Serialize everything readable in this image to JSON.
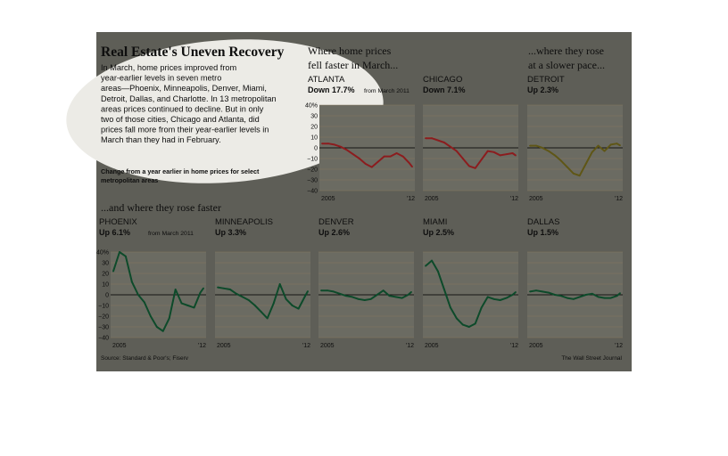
{
  "graphic": {
    "title": "Real Estate's Uneven Recovery",
    "intro": [
      "In March, home prices improved from",
      "year-earlier levels in seven metro",
      "areas—Phoenix, Minneapolis, Denver, Miami,",
      "Detroit, Dallas, and Charlotte. In 13 metropolitan",
      "areas prices continued to decline. But in only",
      "two of those cities, Chicago and Atlanta, did",
      "prices fall more from their year-earlier levels in",
      "March than they had in February."
    ],
    "caption": [
      "Change from a year earlier in home prices for select",
      "metropolitan areas"
    ],
    "headline_fell": [
      "Where home prices",
      "fell faster in March..."
    ],
    "headline_slower": [
      "...where they rose",
      "at a slower pace..."
    ],
    "headline_faster": "...and where they rose faster",
    "source": "Source: Standard & Poor's; Fiserv",
    "credit": "The Wall Street Journal",
    "from_label": "from March 2011",
    "colors": {
      "background": "#5e5e57",
      "panel": "#6b6b62",
      "gridline": "#857a5e",
      "zero_line": "#141414",
      "text": "#0e0e0e",
      "down": "#8c1c1e",
      "slower": "#5f5616",
      "faster": "#0d4a2a",
      "highlight": "#ecebe6"
    }
  },
  "chart_data": [
    {
      "type": "line",
      "metro": "ATLANTA",
      "change": "Down 17.7%",
      "group": "down",
      "x_ticks": [
        "2005",
        "'12"
      ],
      "y_ticks": [
        "40%",
        "30",
        "20",
        "10",
        "0",
        "−10",
        "−20",
        "−30",
        "−40"
      ],
      "ylim": [
        -40,
        40
      ],
      "x": [
        2005,
        2005.5,
        2006,
        2006.5,
        2007,
        2007.5,
        2008,
        2008.5,
        2009,
        2009.5,
        2010,
        2010.5,
        2011,
        2011.5,
        2012,
        2012.25
      ],
      "values": [
        4,
        4,
        3,
        1,
        -2,
        -6,
        -10,
        -15,
        -18,
        -13,
        -8,
        -8,
        -5,
        -8,
        -14,
        -17.7
      ]
    },
    {
      "type": "line",
      "metro": "CHICAGO",
      "change": "Down 7.1%",
      "group": "down",
      "x_ticks": [
        "2005",
        "'12"
      ],
      "ylim": [
        -40,
        40
      ],
      "x": [
        2005,
        2005.5,
        2006,
        2006.5,
        2007,
        2007.5,
        2008,
        2008.5,
        2009,
        2009.5,
        2010,
        2010.5,
        2011,
        2011.5,
        2012,
        2012.25
      ],
      "values": [
        9,
        9,
        7,
        5,
        1,
        -3,
        -10,
        -17,
        -19,
        -11,
        -3,
        -4,
        -7,
        -6,
        -5,
        -7.1
      ]
    },
    {
      "type": "line",
      "metro": "DETROIT",
      "change": "Up 2.3%",
      "group": "slower",
      "x_ticks": [
        "2005",
        "'12"
      ],
      "ylim": [
        -40,
        40
      ],
      "x": [
        2005,
        2005.5,
        2006,
        2006.5,
        2007,
        2007.5,
        2008,
        2008.5,
        2009,
        2009.5,
        2010,
        2010.5,
        2011,
        2011.5,
        2012,
        2012.25
      ],
      "values": [
        2,
        2,
        0,
        -3,
        -7,
        -12,
        -18,
        -24,
        -26,
        -15,
        -4,
        2,
        -3,
        3,
        4,
        2.3
      ]
    },
    {
      "type": "line",
      "metro": "PHOENIX",
      "change": "Up 6.1%",
      "group": "faster",
      "x_ticks": [
        "2005",
        "'12"
      ],
      "y_ticks": [
        "40%",
        "30",
        "20",
        "10",
        "0",
        "−10",
        "−20",
        "−30",
        "−40"
      ],
      "ylim": [
        -40,
        40
      ],
      "x": [
        2005,
        2005.5,
        2006,
        2006.5,
        2007,
        2007.5,
        2008,
        2008.5,
        2009,
        2009.5,
        2010,
        2010.5,
        2011,
        2011.5,
        2012,
        2012.25
      ],
      "values": [
        22,
        40,
        36,
        12,
        0,
        -7,
        -20,
        -30,
        -34,
        -22,
        5,
        -8,
        -10,
        -12,
        2,
        6.1
      ]
    },
    {
      "type": "line",
      "metro": "MINNEAPOLIS",
      "change": "Up 3.3%",
      "group": "faster",
      "x_ticks": [
        "2005",
        "'12"
      ],
      "ylim": [
        -40,
        40
      ],
      "x": [
        2005,
        2005.5,
        2006,
        2006.5,
        2007,
        2007.5,
        2008,
        2008.5,
        2009,
        2009.5,
        2010,
        2010.5,
        2011,
        2011.5,
        2012,
        2012.25
      ],
      "values": [
        7,
        6,
        5,
        1,
        -2,
        -5,
        -10,
        -16,
        -22,
        -8,
        10,
        -4,
        -10,
        -13,
        -2,
        3.3
      ]
    },
    {
      "type": "line",
      "metro": "DENVER",
      "change": "Up 2.6%",
      "group": "faster",
      "x_ticks": [
        "2005",
        "'12"
      ],
      "ylim": [
        -40,
        40
      ],
      "x": [
        2005,
        2005.5,
        2006,
        2006.5,
        2007,
        2007.5,
        2008,
        2008.5,
        2009,
        2009.5,
        2010,
        2010.5,
        2011,
        2011.5,
        2012,
        2012.25
      ],
      "values": [
        4,
        4,
        3,
        1,
        -1,
        -2,
        -4,
        -5,
        -4,
        0,
        4,
        -1,
        -2,
        -3,
        0,
        2.6
      ]
    },
    {
      "type": "line",
      "metro": "MIAMI",
      "change": "Up 2.5%",
      "group": "faster",
      "x_ticks": [
        "2005",
        "'12"
      ],
      "ylim": [
        -40,
        40
      ],
      "x": [
        2005,
        2005.5,
        2006,
        2006.5,
        2007,
        2007.5,
        2008,
        2008.5,
        2009,
        2009.5,
        2010,
        2010.5,
        2011,
        2011.5,
        2012,
        2012.25
      ],
      "values": [
        27,
        32,
        22,
        5,
        -12,
        -22,
        -28,
        -30,
        -27,
        -12,
        -2,
        -4,
        -5,
        -3,
        0,
        2.5
      ]
    },
    {
      "type": "line",
      "metro": "DALLAS",
      "change": "Up 1.5%",
      "group": "faster",
      "x_ticks": [
        "2005",
        "'12"
      ],
      "ylim": [
        -40,
        40
      ],
      "x": [
        2005,
        2005.5,
        2006,
        2006.5,
        2007,
        2007.5,
        2008,
        2008.5,
        2009,
        2009.5,
        2010,
        2010.5,
        2011,
        2011.5,
        2012,
        2012.25
      ],
      "values": [
        3,
        4,
        3,
        2,
        0,
        -1,
        -3,
        -4,
        -2,
        0,
        1,
        -2,
        -3,
        -3,
        -1,
        1.5
      ]
    }
  ]
}
